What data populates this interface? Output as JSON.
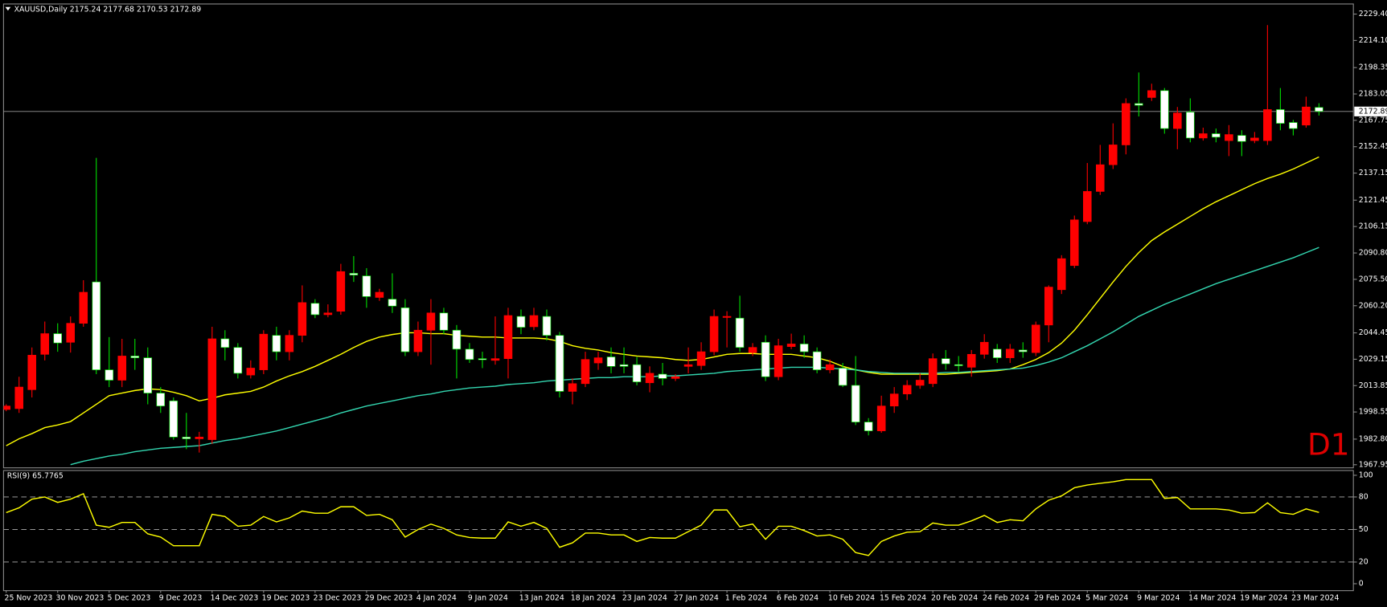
{
  "chart_data": [
    {
      "type": "candlestick",
      "title": "XAUUSD,Daily 2175.24 2177.68 2170.53 2172.89",
      "annotation": "D1",
      "last_price": 2172.89,
      "up_color": "#ff0000",
      "down_color": "#ffffff",
      "up_wick": "#ff0000",
      "down_wick": "#00e000",
      "ylim": [
        1966.4,
        2235.0
      ],
      "yticks": [
        {
          "value": 2229.4,
          "label": "2229.40"
        },
        {
          "value": 2214.1,
          "label": "2214.10"
        },
        {
          "value": 2198.35,
          "label": "2198.35"
        },
        {
          "value": 2183.05,
          "label": "2183.05"
        },
        {
          "value": 2167.75,
          "label": "2167.75"
        },
        {
          "value": 2152.45,
          "label": "2152.45"
        },
        {
          "value": 2137.15,
          "label": "2137.15"
        },
        {
          "value": 2121.45,
          "label": "2121.45"
        },
        {
          "value": 2106.15,
          "label": "2106.15"
        },
        {
          "value": 2090.8,
          "label": "2090.80"
        },
        {
          "value": 2075.5,
          "label": "2075.50"
        },
        {
          "value": 2060.2,
          "label": "2060.20"
        },
        {
          "value": 2044.45,
          "label": "2044.45"
        },
        {
          "value": 2029.15,
          "label": "2029.15"
        },
        {
          "value": 2013.85,
          "label": "2013.85"
        },
        {
          "value": 1998.55,
          "label": "1998.55"
        },
        {
          "value": 1982.8,
          "label": "1982.80"
        },
        {
          "value": 1967.95,
          "label": "1967.95"
        }
      ],
      "categories": [
        "25 Nov 2023",
        null,
        null,
        null,
        "30 Nov 2023",
        null,
        null,
        null,
        "5 Dec 2023",
        null,
        null,
        null,
        "9 Dec 2023",
        null,
        null,
        null,
        "14 Dec 2023",
        null,
        null,
        null,
        "19 Dec 2023",
        null,
        null,
        null,
        "23 Dec 2023",
        null,
        null,
        null,
        "29 Dec 2023",
        null,
        null,
        null,
        "4 Jan 2024",
        null,
        null,
        null,
        "9 Jan 2024",
        null,
        null,
        null,
        "13 Jan 2024",
        null,
        null,
        null,
        "18 Jan 2024",
        null,
        null,
        null,
        "23 Jan 2024",
        null,
        null,
        null,
        "27 Jan 2024",
        null,
        null,
        null,
        "1 Feb 2024",
        null,
        null,
        null,
        "6 Feb 2024",
        null,
        null,
        null,
        "10 Feb 2024",
        null,
        null,
        null,
        "15 Feb 2024",
        null,
        null,
        null,
        "20 Feb 2024",
        null,
        null,
        null,
        "24 Feb 2024",
        null,
        null,
        null,
        "29 Feb 2024",
        null,
        null,
        null,
        "5 Mar 2024",
        null,
        null,
        null,
        "9 Mar 2024",
        null,
        null,
        null,
        "14 Mar 2024",
        null,
        null,
        null,
        "19 Mar 2024",
        null,
        null,
        null,
        "23 Mar 2024",
        null,
        null
      ],
      "ohlc": [
        [
          2000,
          2003,
          1999,
          2002
        ],
        [
          2000.5,
          2019,
          1998,
          2013
        ],
        [
          2011.5,
          2036,
          2007,
          2031.5
        ],
        [
          2032,
          2051,
          2028.5,
          2044
        ],
        [
          2044,
          2050,
          2033.5,
          2038.6
        ],
        [
          2039,
          2054,
          2033,
          2050
        ],
        [
          2050,
          2075,
          2048,
          2068
        ],
        [
          2074,
          2146,
          2020.5,
          2023
        ],
        [
          2023,
          2042,
          2013,
          2017
        ],
        [
          2017,
          2041,
          2013,
          2031
        ],
        [
          2031,
          2041,
          2023,
          2030
        ],
        [
          2030,
          2036,
          2003,
          2009.5
        ],
        [
          2009.5,
          2013,
          1998,
          2002
        ],
        [
          2005,
          2007,
          1982.5,
          1984
        ],
        [
          1984,
          1998,
          1977,
          1983
        ],
        [
          1983,
          1987,
          1975,
          1984
        ],
        [
          1982.5,
          2048,
          1980,
          2041
        ],
        [
          2041,
          2046,
          2028.5,
          2036
        ],
        [
          2036,
          2038.5,
          2018,
          2021
        ],
        [
          2020,
          2028.5,
          2018,
          2024
        ],
        [
          2023,
          2046,
          2020.5,
          2043.7
        ],
        [
          2043,
          2048,
          2028.5,
          2033.5
        ],
        [
          2033.5,
          2046,
          2028.5,
          2043
        ],
        [
          2043,
          2072,
          2039,
          2062
        ],
        [
          2061.6,
          2064,
          2053,
          2055
        ],
        [
          2055,
          2061,
          2053.5,
          2056
        ],
        [
          2057,
          2084.5,
          2055,
          2080
        ],
        [
          2079,
          2089,
          2074,
          2078
        ],
        [
          2077.5,
          2082,
          2059,
          2065.5
        ],
        [
          2065,
          2070,
          2063,
          2068
        ],
        [
          2064,
          2079,
          2056,
          2060
        ],
        [
          2059,
          2064,
          2031,
          2033.5
        ],
        [
          2033.5,
          2051,
          2031,
          2046
        ],
        [
          2046,
          2064,
          2026,
          2056
        ],
        [
          2056,
          2059,
          2043.7,
          2046
        ],
        [
          2046,
          2049,
          2018,
          2035
        ],
        [
          2035,
          2038.5,
          2027,
          2029
        ],
        [
          2029.5,
          2033.5,
          2024,
          2029
        ],
        [
          2028.5,
          2054,
          2026,
          2029.5
        ],
        [
          2029.5,
          2059,
          2018,
          2054.5
        ],
        [
          2054,
          2058,
          2043.7,
          2047.7
        ],
        [
          2048,
          2059,
          2046,
          2054.5
        ],
        [
          2054,
          2058,
          2040,
          2043
        ],
        [
          2043,
          2045,
          2007,
          2010.5
        ],
        [
          2010.5,
          2018,
          2003,
          2015
        ],
        [
          2015,
          2033.5,
          2013,
          2029
        ],
        [
          2027,
          2033.5,
          2023,
          2030
        ],
        [
          2030.5,
          2036,
          2021,
          2025
        ],
        [
          2026,
          2036,
          2021,
          2025
        ],
        [
          2026,
          2030.5,
          2014,
          2016
        ],
        [
          2015.5,
          2025,
          2010,
          2021
        ],
        [
          2020.5,
          2027,
          2014,
          2018
        ],
        [
          2018,
          2020.5,
          2016.5,
          2019
        ],
        [
          2025,
          2036,
          2021,
          2026
        ],
        [
          2025.5,
          2039,
          2023,
          2033.5
        ],
        [
          2033.5,
          2058,
          2031.5,
          2054
        ],
        [
          2053.5,
          2057,
          2036,
          2054
        ],
        [
          2053,
          2066,
          2033.5,
          2036
        ],
        [
          2033,
          2038.5,
          2031,
          2036
        ],
        [
          2039,
          2043,
          2016.5,
          2019
        ],
        [
          2019,
          2041,
          2017,
          2037
        ],
        [
          2036.5,
          2044,
          2035,
          2038
        ],
        [
          2038,
          2043,
          2030,
          2033.5
        ],
        [
          2033.5,
          2036,
          2021,
          2023
        ],
        [
          2023,
          2029,
          2021,
          2026
        ],
        [
          2024,
          2027,
          2013,
          2014
        ],
        [
          2014,
          2031,
          1991,
          1992.7
        ],
        [
          1992.7,
          1995,
          1985,
          1987.6
        ],
        [
          1987.6,
          2008,
          1986.5,
          2002
        ],
        [
          2002,
          2013,
          1998,
          2009
        ],
        [
          2009,
          2017,
          2005.5,
          2014
        ],
        [
          2014,
          2021,
          2012,
          2017
        ],
        [
          2015,
          2032.5,
          2013,
          2029.5
        ],
        [
          2029.5,
          2034.5,
          2023,
          2026.5
        ],
        [
          2026,
          2031,
          2022,
          2025.5
        ],
        [
          2024.5,
          2034.5,
          2019,
          2032
        ],
        [
          2032,
          2043.7,
          2029.5,
          2039
        ],
        [
          2035,
          2038,
          2027,
          2030
        ],
        [
          2030,
          2038,
          2027,
          2035
        ],
        [
          2034.5,
          2039,
          2030,
          2033.5
        ],
        [
          2033,
          2051,
          2031,
          2049
        ],
        [
          2049,
          2072,
          2039,
          2071
        ],
        [
          2069.5,
          2089.5,
          2067,
          2087.5
        ],
        [
          2083.5,
          2112.5,
          2082,
          2110
        ],
        [
          2109,
          2143,
          2107.5,
          2126.5
        ],
        [
          2126.5,
          2153.5,
          2124.5,
          2142
        ],
        [
          2142,
          2166,
          2139.5,
          2153.5
        ],
        [
          2153.5,
          2180.5,
          2148,
          2177.5
        ],
        [
          2177.5,
          2195.5,
          2170,
          2176.5
        ],
        [
          2181,
          2189,
          2179,
          2185
        ],
        [
          2185,
          2186.5,
          2160,
          2163
        ],
        [
          2163,
          2175.5,
          2151,
          2172
        ],
        [
          2172.5,
          2180.5,
          2155,
          2157.5
        ],
        [
          2157.5,
          2163.5,
          2156,
          2160
        ],
        [
          2160,
          2163,
          2155,
          2158
        ],
        [
          2156,
          2165,
          2147,
          2159.5
        ],
        [
          2159,
          2162,
          2147,
          2155.5
        ],
        [
          2156,
          2161,
          2154.5,
          2157.5
        ],
        [
          2156,
          2223,
          2153.5,
          2174
        ],
        [
          2174,
          2186.5,
          2162,
          2166
        ],
        [
          2166.5,
          2168,
          2159,
          2163
        ],
        [
          2165,
          2181.5,
          2163.5,
          2175.5
        ],
        [
          2175.24,
          2177.68,
          2170.53,
          2172.89
        ]
      ],
      "series": [
        {
          "color": "#ffff00",
          "values": [
            1979,
            1983,
            1986,
            1989.5,
            1991,
            1993,
            1998,
            2003,
            2008,
            2009.5,
            2011,
            2012,
            2011.5,
            2010,
            2008,
            2005,
            2006.5,
            2008.5,
            2009.5,
            2010.5,
            2013,
            2016.5,
            2019.5,
            2022,
            2025,
            2028.5,
            2032,
            2036,
            2039.5,
            2042,
            2043.5,
            2044.5,
            2044.5,
            2044,
            2044,
            2043,
            2042.5,
            2042,
            2042,
            2041.5,
            2041.5,
            2041.5,
            2041,
            2039.5,
            2037,
            2035.5,
            2034.5,
            2033,
            2032,
            2031,
            2030.5,
            2030,
            2029,
            2028.5,
            2029,
            2030.5,
            2032,
            2032.5,
            2032.5,
            2032,
            2032,
            2032,
            2031,
            2030,
            2028,
            2025,
            2023,
            2021.5,
            2020.5,
            2020.5,
            2020.5,
            2020.5,
            2020.5,
            2020.5,
            2021,
            2021.5,
            2022,
            2022.5,
            2023.5,
            2026,
            2029,
            2033,
            2038.5,
            2046,
            2055,
            2064.5,
            2074,
            2083,
            2091,
            2098,
            2103,
            2107.5,
            2112,
            2116.5,
            2120.5,
            2124,
            2127.5,
            2131,
            2134,
            2136.5,
            2139.5,
            2143,
            2146.5
          ]
        },
        {
          "color": "#33d6b0",
          "values": [
            null,
            null,
            null,
            null,
            null,
            1968,
            1970,
            1971.5,
            1973,
            1974,
            1975.5,
            1976.5,
            1977.5,
            1978,
            1978.5,
            1979,
            1980.5,
            1982,
            1983,
            1984.5,
            1986,
            1987.5,
            1989.5,
            1991.5,
            1993.5,
            1995.5,
            1998,
            2000,
            2002,
            2003.5,
            2005,
            2006.5,
            2008,
            2009,
            2010.5,
            2011.5,
            2012.5,
            2013,
            2013.5,
            2014.5,
            2015,
            2015.5,
            2016.5,
            2017,
            2017.5,
            2018,
            2018.5,
            2018.5,
            2019,
            2019,
            2019,
            2019.5,
            2019.5,
            2020,
            2020.5,
            2021,
            2022,
            2022.5,
            2023,
            2023.5,
            2024,
            2024.5,
            2024.5,
            2024.5,
            2024,
            2023.5,
            2023,
            2022,
            2021.5,
            2021,
            2021,
            2021,
            2021,
            2021.5,
            2021.5,
            2022,
            2022.5,
            2023,
            2023.5,
            2024,
            2025.5,
            2027.5,
            2030,
            2033.5,
            2037,
            2041,
            2045,
            2049.5,
            2054,
            2057.5,
            2061,
            2064,
            2067,
            2070,
            2073,
            2075.5,
            2078,
            2080.5,
            2083,
            2085.5,
            2088,
            2091,
            2094
          ]
        }
      ]
    },
    {
      "type": "line",
      "title": "RSI(9) 65.7765",
      "color": "#ffff00",
      "ylim": [
        -6,
        104
      ],
      "yticks": [
        100,
        80,
        50,
        20,
        0
      ],
      "levels": [
        80,
        50,
        20
      ],
      "values": [
        65.6,
        70,
        78,
        80,
        75,
        78,
        83,
        54,
        52,
        56.5,
        56.5,
        46,
        43,
        35,
        35,
        35,
        64,
        62,
        53,
        54,
        62,
        57,
        60.7,
        67,
        65,
        65,
        71,
        71,
        63,
        64,
        59,
        43,
        50,
        55,
        51,
        45,
        42.6,
        42,
        42,
        57,
        53,
        56.5,
        51,
        33.6,
        37.7,
        46.7,
        46.7,
        45,
        45,
        39,
        42.6,
        42,
        42,
        48,
        54,
        68,
        68,
        52.5,
        55,
        41,
        53,
        53,
        49,
        44,
        45,
        41,
        28.7,
        26,
        39,
        44,
        47.5,
        48,
        56,
        54,
        54,
        58,
        63,
        56.5,
        59,
        58,
        69,
        77,
        81,
        88.5,
        91,
        92.6,
        94,
        96,
        96,
        96,
        78.7,
        79.5,
        69,
        69,
        69,
        68,
        65,
        65.6,
        74.6,
        65.6,
        64,
        69,
        65.7765
      ]
    }
  ]
}
